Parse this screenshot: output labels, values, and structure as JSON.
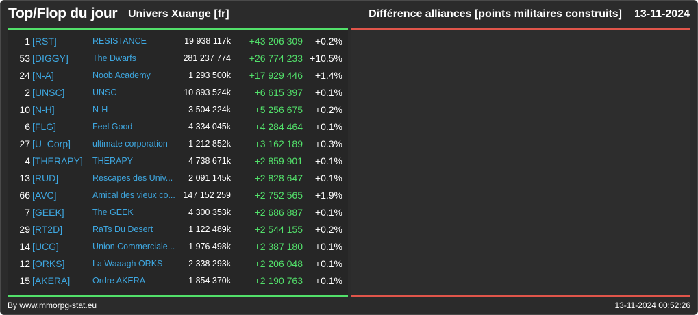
{
  "header": {
    "title": "Top/Flop du jour",
    "universe": "Univers Xuange [fr]",
    "subtitle": "Différence alliances [points militaires construits]",
    "date": "13-11-2024"
  },
  "colors": {
    "top_line": "#52e06a",
    "flop_line": "#e0554a",
    "tag": "#3ea7e0",
    "positive": "#52e06a"
  },
  "top_rows": [
    {
      "rank": "1",
      "tag": "[RST]",
      "name": "RESISTANCE",
      "points": "19 938 117k",
      "diff": "+43 206 309",
      "pct": "+0.2%"
    },
    {
      "rank": "53",
      "tag": "[DIGGY]",
      "name": "The Dwarfs",
      "points": "281 237 774",
      "diff": "+26 774 233",
      "pct": "+10.5%"
    },
    {
      "rank": "24",
      "tag": "[N-A]",
      "name": "Noob Academy",
      "points": "1 293 500k",
      "diff": "+17 929 446",
      "pct": "+1.4%"
    },
    {
      "rank": "2",
      "tag": "[UNSC]",
      "name": "UNSC",
      "points": "10 893 524k",
      "diff": "+6 615 397",
      "pct": "+0.1%"
    },
    {
      "rank": "10",
      "tag": "[N-H]",
      "name": "N-H",
      "points": "3 504 224k",
      "diff": "+5 256 675",
      "pct": "+0.2%"
    },
    {
      "rank": "6",
      "tag": "[FLG]",
      "name": "Feel Good",
      "points": "4 334 045k",
      "diff": "+4 284 464",
      "pct": "+0.1%"
    },
    {
      "rank": "27",
      "tag": "[U_Corp]",
      "name": "ultimate corporation",
      "points": "1 212 852k",
      "diff": "+3 162 189",
      "pct": "+0.3%"
    },
    {
      "rank": "4",
      "tag": "[THERAPY]",
      "name": "THERAPY",
      "points": "4 738 671k",
      "diff": "+2 859 901",
      "pct": "+0.1%"
    },
    {
      "rank": "13",
      "tag": "[RUD]",
      "name": "Rescapes des Univ...",
      "points": "2 091 145k",
      "diff": "+2 828 647",
      "pct": "+0.1%"
    },
    {
      "rank": "66",
      "tag": "[AVC]",
      "name": "Amical des vieux co...",
      "points": "147 152 259",
      "diff": "+2 752 565",
      "pct": "+1.9%"
    },
    {
      "rank": "7",
      "tag": "[GEEK]",
      "name": "The GEEK",
      "points": "4 300 353k",
      "diff": "+2 686 887",
      "pct": "+0.1%"
    },
    {
      "rank": "29",
      "tag": "[RT2D]",
      "name": "RaTs Du Desert",
      "points": "1 122 489k",
      "diff": "+2 544 155",
      "pct": "+0.2%"
    },
    {
      "rank": "14",
      "tag": "[UCG]",
      "name": "Union Commerciale...",
      "points": "1 976 498k",
      "diff": "+2 387 180",
      "pct": "+0.1%"
    },
    {
      "rank": "12",
      "tag": "[ORKS]",
      "name": "La Waaagh ORKS",
      "points": "2 338 293k",
      "diff": "+2 206 048",
      "pct": "+0.1%"
    },
    {
      "rank": "15",
      "tag": "[AKERA]",
      "name": "Ordre AKERA",
      "points": "1 854 370k",
      "diff": "+2 190 763",
      "pct": "+0.1%"
    }
  ],
  "footer": {
    "credit": "By www.mmorpg-stat.eu",
    "timestamp": "13-11-2024 00:52:26"
  }
}
